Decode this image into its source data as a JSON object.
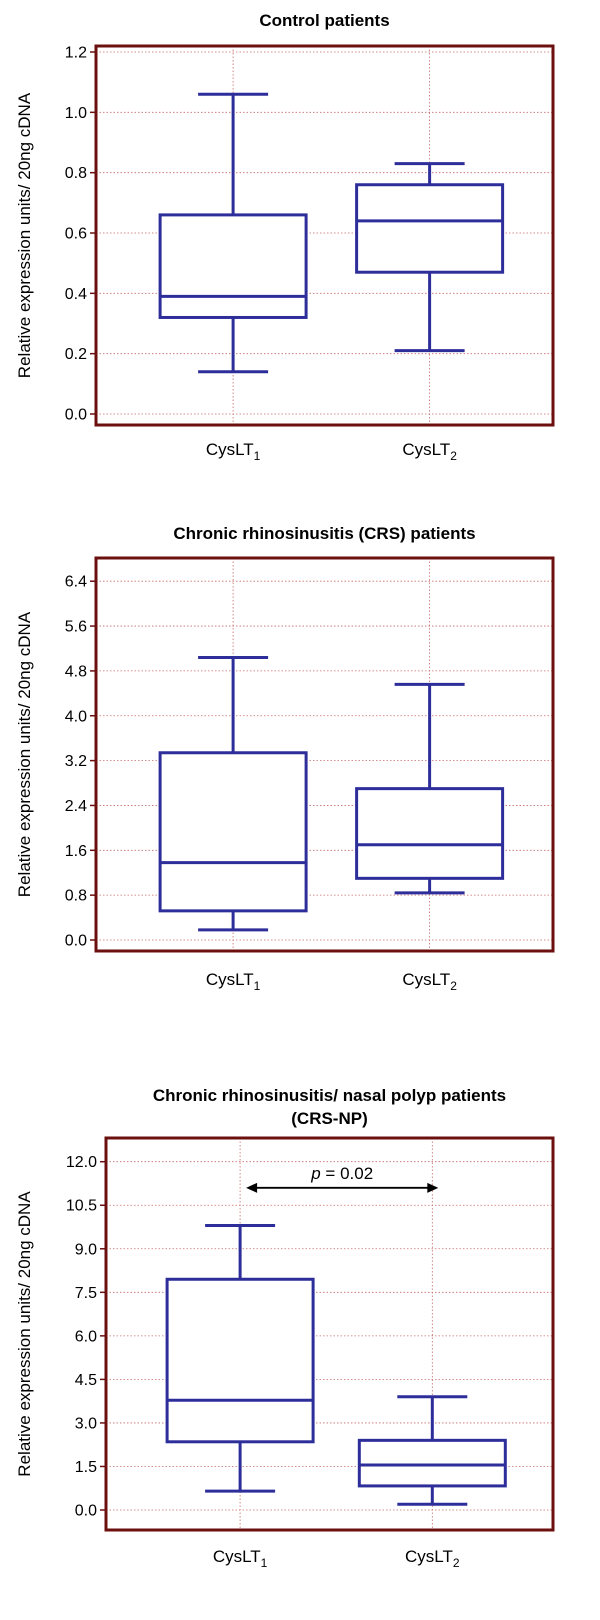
{
  "colors": {
    "frame": "#6b0f0f",
    "box": "#2e2e9b",
    "grid": "#c96b6b",
    "arrow": "#000000"
  },
  "chart_data": [
    {
      "type": "box",
      "title": "Control patients",
      "title2": "",
      "ylabel": "Relative expression units/ 20ng cDNA",
      "ylim": [
        0,
        1.2
      ],
      "yticks": [
        "0.0",
        "0.2",
        "0.4",
        "0.6",
        "0.8",
        "1.0",
        "1.2"
      ],
      "categories": [
        {
          "base": "CysLT",
          "sub": "1"
        },
        {
          "base": "CysLT",
          "sub": "2"
        }
      ],
      "boxes": [
        {
          "min": 0.14,
          "q1": 0.32,
          "median": 0.39,
          "q3": 0.66,
          "max": 1.06
        },
        {
          "min": 0.21,
          "q1": 0.47,
          "median": 0.64,
          "q3": 0.76,
          "max": 0.83
        }
      ],
      "grid": true
    },
    {
      "type": "box",
      "title": "Chronic rhinosinusitis (CRS) patients",
      "title2": "",
      "ylabel": "Relative expression units/ 20ng cDNA",
      "ylim": [
        0,
        6.6
      ],
      "yticks": [
        "0.0",
        "0.8",
        "1.6",
        "2.4",
        "3.2",
        "4.0",
        "4.8",
        "5.6",
        "6.4"
      ],
      "categories": [
        {
          "base": "CysLT",
          "sub": "1"
        },
        {
          "base": "CysLT",
          "sub": "2"
        }
      ],
      "boxes": [
        {
          "min": 0.18,
          "q1": 0.52,
          "median": 1.38,
          "q3": 3.34,
          "max": 5.04
        },
        {
          "min": 0.84,
          "q1": 1.1,
          "median": 1.7,
          "q3": 2.7,
          "max": 4.56
        }
      ],
      "grid": true
    },
    {
      "type": "box",
      "title": "Chronic rhinosinusitis/ nasal polyp patients",
      "title2": "(CRS-NP)",
      "ylabel": "Relative expression units/ 20ng cDNA",
      "ylim": [
        0,
        12.3
      ],
      "yticks": [
        "0.0",
        "1.5",
        "3.0",
        "4.5",
        "6.0",
        "7.5",
        "9.0",
        "10.5",
        "12.0"
      ],
      "categories": [
        {
          "base": "CysLT",
          "sub": "1"
        },
        {
          "base": "CysLT",
          "sub": "2"
        }
      ],
      "boxes": [
        {
          "min": 0.65,
          "q1": 2.35,
          "median": 3.78,
          "q3": 7.95,
          "max": 9.8
        },
        {
          "min": 0.2,
          "q1": 0.83,
          "median": 1.55,
          "q3": 2.4,
          "max": 3.9
        }
      ],
      "annotation": {
        "p_label": "p",
        "p_rest": " = 0.02",
        "y": 11.1
      },
      "grid": true
    }
  ]
}
